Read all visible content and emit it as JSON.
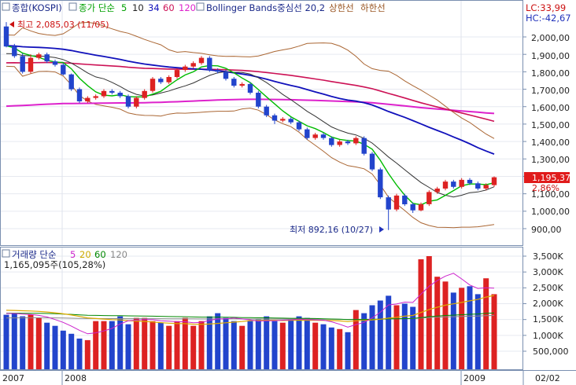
{
  "legend": {
    "index_label": "종합(KOSPI)",
    "price_label": "종가 단순",
    "price_periods": [
      "5",
      "10",
      "34",
      "60",
      "120"
    ],
    "bollinger_label": "Bollinger Bands중심선 20,2",
    "upper_label": "상한선",
    "lower_label": "하한선",
    "volume_label": "거래량 단순",
    "volume_periods": [
      "5",
      "20",
      "60",
      "120"
    ],
    "volume_readout": "1,165,095주(105,28%)"
  },
  "stats": {
    "lc": "LC:33,99",
    "hc": "HC:-42,67"
  },
  "annotations": {
    "high_label": "최고 2,085,03 (11/05)",
    "low_label": "최저 892,16 (10/27)",
    "last_price": "1,195,37",
    "last_change": "2,86%"
  },
  "axes": {
    "price_ticks": [
      "2,000,00",
      "1,900,00",
      "1,800,00",
      "1,700,00",
      "1,600,00",
      "1,500,00",
      "1,400,00",
      "1,300,00",
      "1,100,00",
      "1,000,00",
      "900,00"
    ],
    "volume_ticks": [
      "3,500K",
      "3,000K",
      "2,500K",
      "2,000K",
      "1,500K",
      "1,000K",
      "500,000"
    ],
    "x_labels": [
      "2007",
      "2008",
      "2009"
    ],
    "date_readout": "02/02"
  },
  "colors": {
    "up": "#dd2222",
    "down": "#2244cc",
    "ma5": "#00bb00",
    "ma10": "#333333",
    "ma34": "#1111bb",
    "ma60": "#cc1155",
    "ma120": "#dd22cc",
    "band": "#aa6633",
    "vol_ma5": "#cc22cc",
    "vol_ma20": "#ddaa00",
    "vol_ma60": "#008800",
    "vol_ma120": "#888888"
  },
  "chart_data": {
    "type": "candlestick",
    "x_period": "2007 – 2009-02-02 (weekly)",
    "price": {
      "open": [
        2060,
        1945,
        1890,
        1800,
        1880,
        1900,
        1860,
        1840,
        1785,
        1700,
        1630,
        1650,
        1660,
        1690,
        1680,
        1660,
        1600,
        1650,
        1690,
        1760,
        1740,
        1770,
        1810,
        1830,
        1850,
        1880,
        1810,
        1800,
        1760,
        1720,
        1730,
        1680,
        1600,
        1550,
        1520,
        1530,
        1510,
        1470,
        1420,
        1440,
        1420,
        1380,
        1400,
        1390,
        1420,
        1330,
        1240,
        1080,
        1010,
        1090,
        1040,
        1005,
        1040,
        1110,
        1130,
        1170,
        1140,
        1180,
        1160,
        1130,
        1150
      ],
      "close": [
        1945,
        1890,
        1800,
        1880,
        1900,
        1860,
        1840,
        1785,
        1700,
        1630,
        1650,
        1660,
        1690,
        1680,
        1660,
        1600,
        1650,
        1690,
        1760,
        1740,
        1770,
        1810,
        1830,
        1850,
        1880,
        1810,
        1800,
        1760,
        1720,
        1730,
        1680,
        1600,
        1550,
        1520,
        1530,
        1510,
        1470,
        1420,
        1440,
        1420,
        1380,
        1400,
        1390,
        1420,
        1330,
        1240,
        1080,
        1010,
        1090,
        1040,
        1005,
        1040,
        1110,
        1130,
        1170,
        1140,
        1180,
        1160,
        1130,
        1150,
        1195
      ],
      "high": [
        2085,
        1960,
        1905,
        1900,
        1910,
        1910,
        1870,
        1850,
        1790,
        1710,
        1660,
        1670,
        1700,
        1700,
        1690,
        1670,
        1660,
        1700,
        1770,
        1770,
        1780,
        1820,
        1840,
        1860,
        1890,
        1890,
        1820,
        1810,
        1770,
        1740,
        1740,
        1690,
        1610,
        1560,
        1540,
        1540,
        1520,
        1480,
        1450,
        1450,
        1430,
        1410,
        1410,
        1430,
        1430,
        1340,
        1250,
        1090,
        1100,
        1100,
        1050,
        1050,
        1120,
        1140,
        1180,
        1180,
        1190,
        1190,
        1170,
        1160,
        1200
      ],
      "low": [
        1940,
        1880,
        1790,
        1790,
        1870,
        1850,
        1830,
        1780,
        1690,
        1620,
        1620,
        1640,
        1650,
        1670,
        1650,
        1590,
        1590,
        1640,
        1680,
        1730,
        1730,
        1760,
        1800,
        1820,
        1840,
        1800,
        1790,
        1750,
        1710,
        1710,
        1670,
        1590,
        1540,
        1500,
        1510,
        1500,
        1460,
        1410,
        1410,
        1410,
        1370,
        1370,
        1380,
        1380,
        1320,
        1230,
        1070,
        892,
        1000,
        1030,
        990,
        1000,
        1030,
        1100,
        1120,
        1130,
        1130,
        1150,
        1120,
        1120,
        1140
      ]
    },
    "volume": [
      1650,
      1700,
      1600,
      1650,
      1550,
      1400,
      1300,
      1150,
      1050,
      900,
      850,
      1450,
      1450,
      1450,
      1600,
      1350,
      1550,
      1550,
      1450,
      1400,
      1300,
      1450,
      1550,
      1300,
      1450,
      1600,
      1700,
      1550,
      1450,
      1300,
      1450,
      1500,
      1600,
      1450,
      1400,
      1500,
      1600,
      1550,
      1400,
      1350,
      1250,
      1200,
      1100,
      1800,
      1700,
      1950,
      2100,
      2250,
      1950,
      2000,
      1900,
      3400,
      3500,
      2850,
      2700,
      2350,
      2500,
      2550,
      2300,
      2800,
      2300
    ]
  }
}
